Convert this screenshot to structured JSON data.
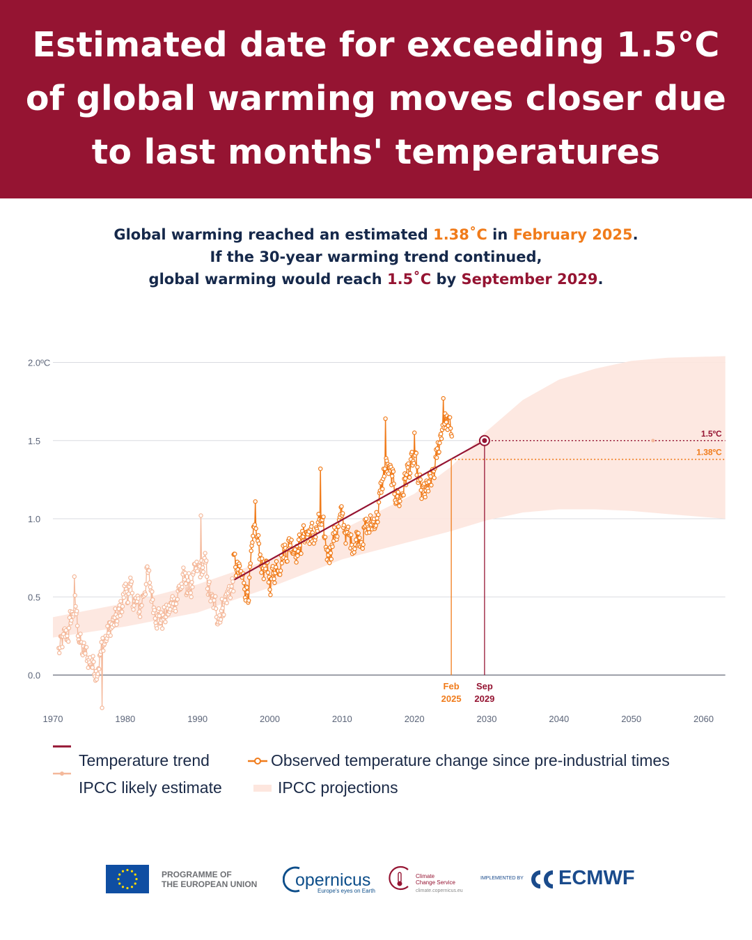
{
  "banner": {
    "title_lines": [
      "Estimated date for exceeding 1.5°C",
      "of global warming moves closer due",
      "to last months' temperatures"
    ],
    "background": "#951432"
  },
  "subtitle": {
    "line1": {
      "before": "Global warming reached an estimated ",
      "value": "1.38˚C",
      "middle": " in ",
      "date": "February 2025",
      "after": "."
    },
    "line2": "If the 30-year warming trend continued,",
    "line3": {
      "before": "global warming would reach ",
      "value": "1.5˚C",
      "middle": " by ",
      "date": "September 2029",
      "after": "."
    }
  },
  "colors": {
    "trend": "#951432",
    "observed": "#f07b1a",
    "ipcc_estimate": "#f4b89a",
    "projection_band": "#fde6de",
    "text": "#1b2a47",
    "axis_text": "#5b6478"
  },
  "chart_data": {
    "type": "line",
    "x_axis": {
      "min": 1970,
      "max": 2063,
      "ticks": [
        1970,
        1980,
        1990,
        2000,
        2010,
        2020,
        2030,
        2040,
        2050,
        2060
      ],
      "unit": "year"
    },
    "y_axis": {
      "min": -0.2,
      "max": 2.05,
      "ticks": [
        0.0,
        0.5,
        1.0,
        1.5,
        2.0
      ],
      "tick_labels": [
        "0.0",
        "0.5",
        "1.0",
        "1.5",
        "2.0ºC"
      ]
    },
    "grid": true,
    "legend_position": "bottom",
    "series": [
      {
        "name": "Temperature trend",
        "type": "line",
        "points": [
          [
            1995.1,
            0.61
          ],
          [
            2029.7,
            1.5
          ]
        ]
      },
      {
        "name": "Observed temperature change since pre-industrial times",
        "type": "line-markers",
        "x_start": 1995.0,
        "x_end": 2025.2,
        "anchors": [
          [
            1995.0,
            0.7
          ],
          [
            1996.0,
            0.62
          ],
          [
            1997.0,
            0.55
          ],
          [
            1998.0,
            0.92
          ],
          [
            1999.0,
            0.7
          ],
          [
            2000.0,
            0.6
          ],
          [
            2001.0,
            0.72
          ],
          [
            2002.0,
            0.8
          ],
          [
            2003.0,
            0.85
          ],
          [
            2004.0,
            0.82
          ],
          [
            2005.0,
            0.92
          ],
          [
            2006.0,
            0.88
          ],
          [
            2007.0,
            0.96
          ],
          [
            2008.0,
            0.78
          ],
          [
            2009.0,
            0.9
          ],
          [
            2010.0,
            1.0
          ],
          [
            2011.0,
            0.85
          ],
          [
            2012.0,
            0.88
          ],
          [
            2013.0,
            0.92
          ],
          [
            2014.0,
            0.95
          ],
          [
            2015.0,
            1.05
          ],
          [
            2016.0,
            1.35
          ],
          [
            2017.0,
            1.22
          ],
          [
            2018.0,
            1.12
          ],
          [
            2019.0,
            1.3
          ],
          [
            2020.0,
            1.35
          ],
          [
            2021.0,
            1.15
          ],
          [
            2022.0,
            1.18
          ],
          [
            2023.0,
            1.35
          ],
          [
            2024.0,
            1.65
          ],
          [
            2025.1,
            1.55
          ]
        ],
        "noise": 0.1,
        "marked_peaks": [
          [
            1998.0,
            1.11
          ],
          [
            2007.0,
            1.32
          ],
          [
            2016.0,
            1.64
          ],
          [
            2020.0,
            1.55
          ],
          [
            2024.0,
            1.77
          ]
        ]
      },
      {
        "name": "IPCC likely estimate",
        "type": "line-markers",
        "x_start": 1970.8,
        "x_end": 1995.0,
        "anchors": [
          [
            1970.8,
            0.15
          ],
          [
            1972.0,
            0.25
          ],
          [
            1973.0,
            0.45
          ],
          [
            1974.0,
            0.15
          ],
          [
            1975.0,
            0.1
          ],
          [
            1976.0,
            0.05
          ],
          [
            1977.0,
            0.2
          ],
          [
            1978.0,
            0.3
          ],
          [
            1979.0,
            0.35
          ],
          [
            1980.0,
            0.55
          ],
          [
            1981.0,
            0.5
          ],
          [
            1982.0,
            0.4
          ],
          [
            1983.0,
            0.65
          ],
          [
            1984.0,
            0.45
          ],
          [
            1985.0,
            0.35
          ],
          [
            1986.0,
            0.4
          ],
          [
            1987.0,
            0.5
          ],
          [
            1988.0,
            0.6
          ],
          [
            1989.0,
            0.55
          ],
          [
            1990.0,
            0.65
          ],
          [
            1991.0,
            0.7
          ],
          [
            1992.0,
            0.45
          ],
          [
            1993.0,
            0.4
          ],
          [
            1994.0,
            0.5
          ],
          [
            1995.0,
            0.6
          ]
        ],
        "noise": 0.1,
        "marked_extremes": [
          [
            1973.0,
            0.63
          ],
          [
            1976.8,
            -0.21
          ],
          [
            1990.5,
            1.02
          ]
        ]
      },
      {
        "name": "IPCC projections",
        "type": "area",
        "lower": [
          [
            1970,
            0.24
          ],
          [
            1980,
            0.31
          ],
          [
            1990,
            0.4
          ],
          [
            2000,
            0.56
          ],
          [
            2010,
            0.74
          ],
          [
            2020,
            0.86
          ],
          [
            2025,
            0.92
          ],
          [
            2030,
            0.99
          ],
          [
            2035,
            1.04
          ],
          [
            2040,
            1.06
          ],
          [
            2045,
            1.06
          ],
          [
            2050,
            1.05
          ],
          [
            2055,
            1.03
          ],
          [
            2063,
            1.0
          ]
        ],
        "upper": [
          [
            1970,
            0.37
          ],
          [
            1980,
            0.46
          ],
          [
            1990,
            0.58
          ],
          [
            2000,
            0.74
          ],
          [
            2010,
            0.93
          ],
          [
            2020,
            1.16
          ],
          [
            2025,
            1.33
          ],
          [
            2030,
            1.56
          ],
          [
            2035,
            1.76
          ],
          [
            2040,
            1.89
          ],
          [
            2045,
            1.96
          ],
          [
            2050,
            2.01
          ],
          [
            2055,
            2.03
          ],
          [
            2063,
            2.04
          ]
        ]
      }
    ],
    "reference_lines": [
      {
        "label": "1.5ºC",
        "y": 1.5,
        "x_from": 2029.7,
        "color": "#951432",
        "end_marker_x": 2053.0
      },
      {
        "label": "1.38ºC",
        "y": 1.38,
        "x_from": 2025.1,
        "color": "#f07b1a"
      }
    ],
    "vertical_markers": [
      {
        "x": 2025.1,
        "y": 1.38,
        "label_top": "Feb",
        "label_bottom": "2025",
        "color": "#f07b1a"
      },
      {
        "x": 2029.7,
        "y": 1.5,
        "label_top": "Sep",
        "label_bottom": "2029",
        "color": "#951432"
      }
    ]
  },
  "legend": {
    "items": [
      "Temperature trend",
      "Observed temperature change since pre-industrial times",
      "IPCC likely estimate",
      "IPCC projections"
    ]
  },
  "footer": {
    "eu_programme": [
      "PROGRAMME OF",
      "THE EUROPEAN UNION"
    ],
    "copernicus": {
      "name": "opernicus",
      "initial": "c",
      "tagline": "Europe's eyes on Earth"
    },
    "c3s": {
      "line1": "Climate",
      "line2": "Change Service",
      "url": "climate.copernicus.eu"
    },
    "implemented_by": "IMPLEMENTED BY",
    "ecmwf": "ECMWF"
  }
}
